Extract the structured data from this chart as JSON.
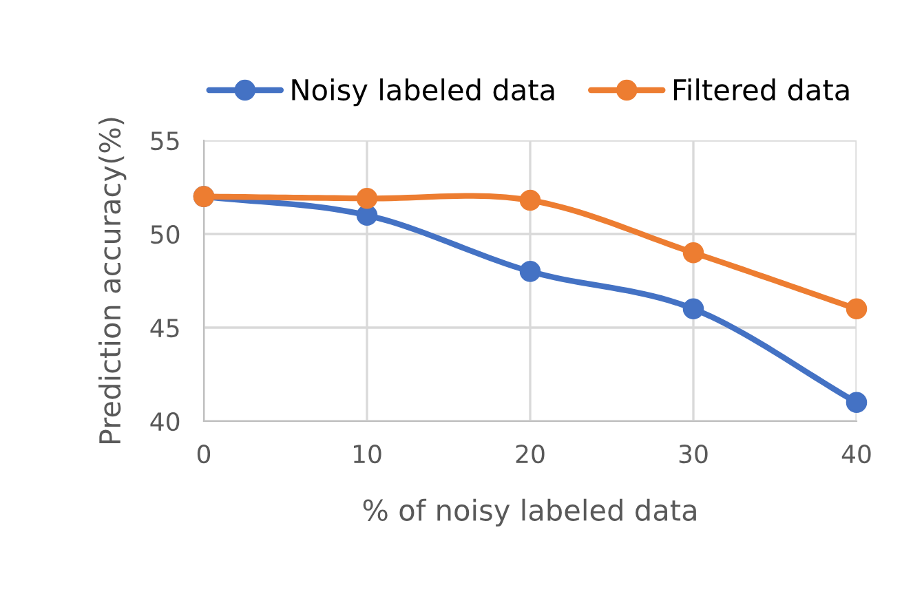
{
  "chart_data": {
    "type": "line",
    "xlabel": "% of noisy labeled data",
    "ylabel": "Prediction accuracy(%)",
    "x": [
      0,
      10,
      20,
      30,
      40
    ],
    "xlim": [
      0,
      40
    ],
    "xticks": [
      0,
      10,
      20,
      30,
      40
    ],
    "ylim": [
      40,
      55
    ],
    "yticks": [
      40,
      45,
      50,
      55
    ],
    "series": [
      {
        "name": "Noisy labeled data",
        "color": "#4472c4",
        "values": [
          52,
          51,
          48,
          46,
          41
        ]
      },
      {
        "name": "Filtered data",
        "color": "#ed7d31",
        "values": [
          52,
          51.9,
          51.8,
          49,
          46
        ]
      }
    ],
    "grid": true,
    "legend": "top",
    "marker": "circle",
    "line_style": "solid"
  }
}
